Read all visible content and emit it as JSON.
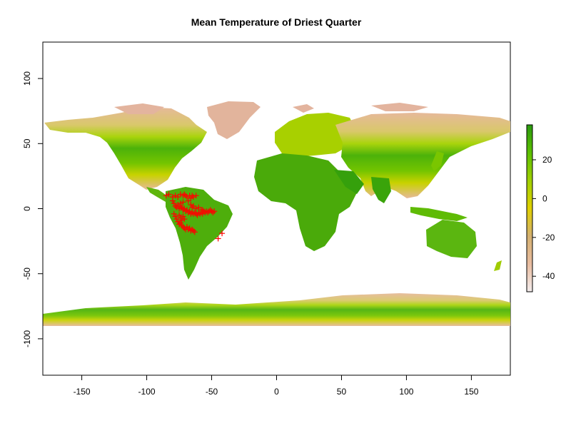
{
  "chart_data": {
    "type": "map",
    "title": "Mean Temperature of Driest Quarter",
    "xlim": [
      -180,
      180
    ],
    "ylim": [
      -128,
      128
    ],
    "x_ticks": [
      -150,
      -100,
      -50,
      0,
      50,
      100,
      150
    ],
    "y_ticks": [
      100,
      50,
      0,
      -50,
      -100
    ],
    "x_tick_labels": [
      "-150",
      "-100",
      "-50",
      "0",
      "50",
      "100",
      "150"
    ],
    "y_tick_labels": [
      "100",
      "50",
      "0",
      "-50",
      "-100"
    ],
    "colorbar": {
      "range": [
        -48,
        38
      ],
      "ticks": [
        20,
        0,
        -20,
        -40
      ],
      "tick_labels": [
        "20",
        "0",
        "-20",
        "-40"
      ],
      "colors": [
        "#f3ecec",
        "#e8bca0",
        "#d4b070",
        "#e0d000",
        "#a0d000",
        "#5cc000",
        "#2a9a10"
      ]
    },
    "points": {
      "marker": "+",
      "color": "#ff0000",
      "coords": [
        [
          -85,
          10
        ],
        [
          -83,
          11
        ],
        [
          -80,
          9
        ],
        [
          -78,
          10
        ],
        [
          -76,
          9
        ],
        [
          -74,
          11
        ],
        [
          -72,
          10
        ],
        [
          -71,
          11
        ],
        [
          -70,
          10
        ],
        [
          -69,
          9
        ],
        [
          -67,
          10
        ],
        [
          -66,
          8
        ],
        [
          -65,
          10
        ],
        [
          -64,
          9
        ],
        [
          -62,
          10
        ],
        [
          -80,
          6
        ],
        [
          -79,
          4
        ],
        [
          -78,
          2
        ],
        [
          -77,
          1
        ],
        [
          -76,
          3
        ],
        [
          -75,
          0
        ],
        [
          -74,
          2
        ],
        [
          -73,
          1
        ],
        [
          -72,
          -1
        ],
        [
          -71,
          0
        ],
        [
          -70,
          -2
        ],
        [
          -69,
          -1
        ],
        [
          -68,
          -3
        ],
        [
          -67,
          -2
        ],
        [
          -66,
          -4
        ],
        [
          -65,
          -3
        ],
        [
          -64,
          -4
        ],
        [
          -63,
          -3
        ],
        [
          -62,
          -4
        ],
        [
          -61,
          -5
        ],
        [
          -60,
          -3
        ],
        [
          -59,
          -4
        ],
        [
          -58,
          -3
        ],
        [
          -57,
          -4
        ],
        [
          -56,
          -2
        ],
        [
          -55,
          -3
        ],
        [
          -54,
          -2
        ],
        [
          -53,
          -3
        ],
        [
          -52,
          -2
        ],
        [
          -51,
          -1
        ],
        [
          -50,
          -2
        ],
        [
          -49,
          -3
        ],
        [
          -48,
          -2
        ],
        [
          -79,
          -4
        ],
        [
          -78,
          -6
        ],
        [
          -77,
          -8
        ],
        [
          -76,
          -10
        ],
        [
          -75,
          -12
        ],
        [
          -74,
          -11
        ],
        [
          -73,
          -13
        ],
        [
          -72,
          -14
        ],
        [
          -71,
          -15
        ],
        [
          -70,
          -16
        ],
        [
          -69,
          -14
        ],
        [
          -68,
          -16
        ],
        [
          -67,
          -15
        ],
        [
          -66,
          -17
        ],
        [
          -65,
          -16
        ],
        [
          -64,
          -17
        ],
        [
          -63,
          -18
        ],
        [
          -75,
          -5
        ],
        [
          -74,
          -7
        ],
        [
          -73,
          -9
        ],
        [
          -72,
          -6
        ],
        [
          -71,
          -8
        ],
        [
          -68,
          6
        ],
        [
          -66,
          3
        ],
        [
          -65,
          1
        ],
        [
          -64,
          2
        ],
        [
          -62,
          0
        ],
        [
          -60,
          1
        ],
        [
          -58,
          -1
        ],
        [
          -57,
          -1
        ],
        [
          -74,
          4
        ],
        [
          -72,
          5
        ],
        [
          -42,
          -19
        ],
        [
          -45,
          -23
        ]
      ]
    }
  }
}
